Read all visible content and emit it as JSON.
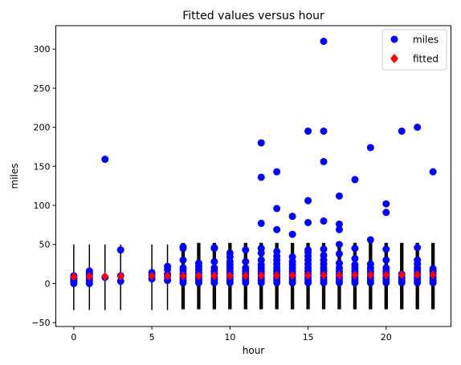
{
  "chart_data": {
    "type": "scatter",
    "title": "Fitted values versus hour",
    "xlabel": "hour",
    "ylabel": "miles",
    "xlim": [
      -1.15,
      24.15
    ],
    "ylim": [
      -55,
      330
    ],
    "xticks": [
      0,
      5,
      10,
      15,
      20
    ],
    "yticks": [
      -50,
      0,
      50,
      100,
      150,
      200,
      250,
      300
    ],
    "grid": false,
    "legend_position": "top-right",
    "series": [
      {
        "name": "miles",
        "marker": "circle",
        "color": "#0000ff",
        "points": [
          [
            0,
            0
          ],
          [
            0,
            2
          ],
          [
            0,
            4
          ],
          [
            0,
            6
          ],
          [
            0,
            8
          ],
          [
            0,
            10
          ],
          [
            1,
            0
          ],
          [
            1,
            3
          ],
          [
            1,
            7
          ],
          [
            1,
            10
          ],
          [
            1,
            13
          ],
          [
            1,
            16
          ],
          [
            2,
            8
          ],
          [
            2,
            159
          ],
          [
            3,
            3
          ],
          [
            3,
            10
          ],
          [
            3,
            43
          ],
          [
            5,
            6
          ],
          [
            5,
            10
          ],
          [
            5,
            14
          ],
          [
            6,
            4
          ],
          [
            6,
            9
          ],
          [
            6,
            12
          ],
          [
            6,
            18
          ],
          [
            6,
            22
          ],
          [
            7,
            1
          ],
          [
            7,
            4
          ],
          [
            7,
            8
          ],
          [
            7,
            12
          ],
          [
            7,
            17
          ],
          [
            7,
            20
          ],
          [
            7,
            30
          ],
          [
            7,
            45
          ],
          [
            7,
            47
          ],
          [
            8,
            1
          ],
          [
            8,
            4
          ],
          [
            8,
            7
          ],
          [
            8,
            10
          ],
          [
            8,
            14
          ],
          [
            8,
            18
          ],
          [
            8,
            22
          ],
          [
            8,
            26
          ],
          [
            9,
            1
          ],
          [
            9,
            4
          ],
          [
            9,
            8
          ],
          [
            9,
            12
          ],
          [
            9,
            16
          ],
          [
            9,
            20
          ],
          [
            9,
            28
          ],
          [
            9,
            45
          ],
          [
            9,
            46
          ],
          [
            10,
            1
          ],
          [
            10,
            4
          ],
          [
            10,
            8
          ],
          [
            10,
            12
          ],
          [
            10,
            16
          ],
          [
            10,
            20
          ],
          [
            10,
            24
          ],
          [
            10,
            28
          ],
          [
            10,
            34
          ],
          [
            10,
            39
          ],
          [
            11,
            1
          ],
          [
            11,
            4
          ],
          [
            11,
            8
          ],
          [
            11,
            12
          ],
          [
            11,
            16
          ],
          [
            11,
            20
          ],
          [
            11,
            28
          ],
          [
            11,
            43
          ],
          [
            12,
            1
          ],
          [
            12,
            4
          ],
          [
            12,
            8
          ],
          [
            12,
            12
          ],
          [
            12,
            16
          ],
          [
            12,
            20
          ],
          [
            12,
            24
          ],
          [
            12,
            30
          ],
          [
            12,
            39
          ],
          [
            12,
            45
          ],
          [
            12,
            77
          ],
          [
            12,
            136
          ],
          [
            12,
            180
          ],
          [
            13,
            1
          ],
          [
            13,
            4
          ],
          [
            13,
            8
          ],
          [
            13,
            12
          ],
          [
            13,
            16
          ],
          [
            13,
            20
          ],
          [
            13,
            25
          ],
          [
            13,
            30
          ],
          [
            13,
            35
          ],
          [
            13,
            41
          ],
          [
            13,
            69
          ],
          [
            13,
            96
          ],
          [
            13,
            143
          ],
          [
            14,
            1
          ],
          [
            14,
            4
          ],
          [
            14,
            8
          ],
          [
            14,
            12
          ],
          [
            14,
            16
          ],
          [
            14,
            20
          ],
          [
            14,
            24
          ],
          [
            14,
            28
          ],
          [
            14,
            34
          ],
          [
            14,
            63
          ],
          [
            14,
            86
          ],
          [
            15,
            1
          ],
          [
            15,
            4
          ],
          [
            15,
            8
          ],
          [
            15,
            12
          ],
          [
            15,
            16
          ],
          [
            15,
            20
          ],
          [
            15,
            25
          ],
          [
            15,
            30
          ],
          [
            15,
            35
          ],
          [
            15,
            40
          ],
          [
            15,
            43
          ],
          [
            15,
            78
          ],
          [
            15,
            106
          ],
          [
            15,
            195
          ],
          [
            16,
            1
          ],
          [
            16,
            4
          ],
          [
            16,
            8
          ],
          [
            16,
            12
          ],
          [
            16,
            16
          ],
          [
            16,
            20
          ],
          [
            16,
            25
          ],
          [
            16,
            30
          ],
          [
            16,
            36
          ],
          [
            16,
            44
          ],
          [
            16,
            80
          ],
          [
            16,
            156
          ],
          [
            16,
            195
          ],
          [
            16,
            310
          ],
          [
            17,
            1
          ],
          [
            17,
            4
          ],
          [
            17,
            8
          ],
          [
            17,
            12
          ],
          [
            17,
            16
          ],
          [
            17,
            20
          ],
          [
            17,
            26
          ],
          [
            17,
            38
          ],
          [
            17,
            50
          ],
          [
            17,
            69
          ],
          [
            17,
            76
          ],
          [
            17,
            112
          ],
          [
            18,
            1
          ],
          [
            18,
            4
          ],
          [
            18,
            8
          ],
          [
            18,
            12
          ],
          [
            18,
            16
          ],
          [
            18,
            20
          ],
          [
            18,
            24
          ],
          [
            18,
            32
          ],
          [
            18,
            45
          ],
          [
            18,
            133
          ],
          [
            19,
            1
          ],
          [
            19,
            4
          ],
          [
            19,
            8
          ],
          [
            19,
            12
          ],
          [
            19,
            16
          ],
          [
            19,
            20
          ],
          [
            19,
            25
          ],
          [
            19,
            56
          ],
          [
            19,
            174
          ],
          [
            20,
            1
          ],
          [
            20,
            4
          ],
          [
            20,
            8
          ],
          [
            20,
            12
          ],
          [
            20,
            16
          ],
          [
            20,
            20
          ],
          [
            20,
            30
          ],
          [
            20,
            44
          ],
          [
            20,
            91
          ],
          [
            20,
            102
          ],
          [
            21,
            1
          ],
          [
            21,
            4
          ],
          [
            21,
            8
          ],
          [
            21,
            12
          ],
          [
            21,
            195
          ],
          [
            22,
            1
          ],
          [
            22,
            4
          ],
          [
            22,
            8
          ],
          [
            22,
            12
          ],
          [
            22,
            16
          ],
          [
            22,
            20
          ],
          [
            22,
            25
          ],
          [
            22,
            30
          ],
          [
            22,
            46
          ],
          [
            22,
            200
          ],
          [
            23,
            1
          ],
          [
            23,
            4
          ],
          [
            23,
            8
          ],
          [
            23,
            12
          ],
          [
            23,
            16
          ],
          [
            23,
            19
          ],
          [
            23,
            143
          ]
        ]
      },
      {
        "name": "fitted",
        "marker": "diamond",
        "color": "#ff0000",
        "points": [
          [
            0,
            8.8
          ],
          [
            1,
            9.0
          ],
          [
            2,
            9.1
          ],
          [
            3,
            9.3
          ],
          [
            5,
            9.5
          ],
          [
            6,
            9.6
          ],
          [
            7,
            9.7
          ],
          [
            8,
            9.8
          ],
          [
            9,
            9.9
          ],
          [
            10,
            10.0
          ],
          [
            11,
            10.1
          ],
          [
            12,
            10.2
          ],
          [
            13,
            10.3
          ],
          [
            14,
            10.4
          ],
          [
            15,
            10.5
          ],
          [
            16,
            10.6
          ],
          [
            17,
            10.7
          ],
          [
            18,
            10.8
          ],
          [
            19,
            10.9
          ],
          [
            20,
            11.0
          ],
          [
            21,
            11.1
          ],
          [
            22,
            11.2
          ],
          [
            23,
            11.3
          ]
        ]
      }
    ],
    "error_bars": {
      "color": "#000000",
      "x": [
        0,
        1,
        2,
        3,
        5,
        6,
        7,
        8,
        9,
        10,
        11,
        12,
        13,
        14,
        15,
        16,
        17,
        18,
        19,
        20,
        21,
        22,
        23
      ],
      "lower": [
        -34,
        -34,
        -34,
        -34,
        -34,
        -34,
        -33,
        -33,
        -33,
        -33,
        -33,
        -33,
        -33,
        -33,
        -33,
        -33,
        -33,
        -33,
        -33,
        -33,
        -33,
        -33,
        -33
      ],
      "upper": [
        50,
        50,
        50,
        50,
        50,
        50,
        52,
        52,
        52,
        52,
        52,
        52,
        52,
        52,
        52,
        52,
        52,
        52,
        52,
        52,
        52,
        52,
        52
      ],
      "count": [
        1,
        1,
        1,
        1,
        1,
        1,
        3,
        3,
        3,
        3,
        3,
        3,
        3,
        3,
        3,
        3,
        3,
        3,
        3,
        3,
        3,
        3,
        3
      ]
    }
  }
}
